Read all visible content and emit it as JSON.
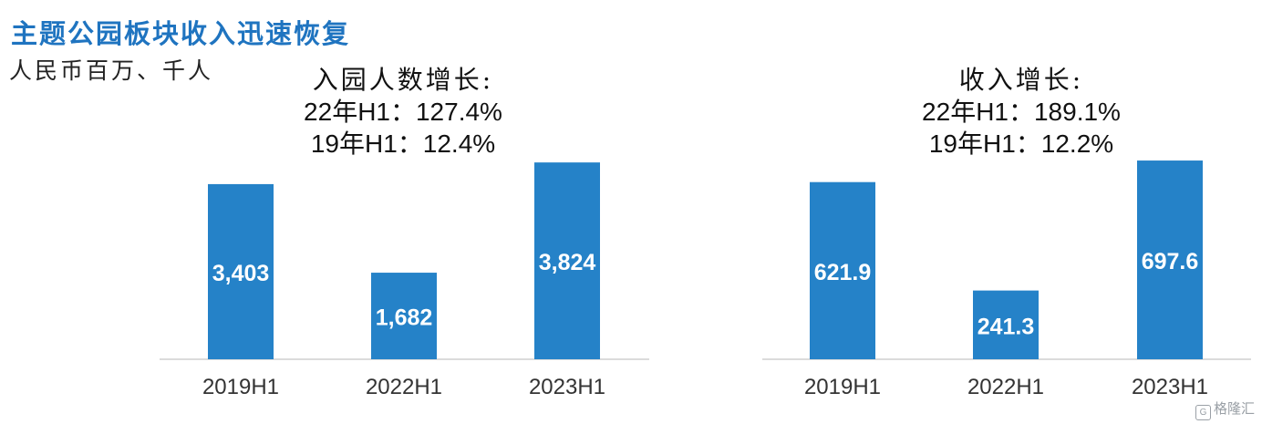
{
  "title": "主题公园板块收入迅速恢复",
  "unit_label": "人民币百万、千人",
  "watermark": {
    "icon": "G",
    "text": "格隆汇"
  },
  "colors": {
    "bar": "#2582c8",
    "title": "#1f74c0",
    "axis": "#cfcfcf",
    "tick_text": "#333333",
    "bar_label": "#ffffff"
  },
  "chart_data": [
    {
      "type": "bar",
      "title": "",
      "annotation": {
        "heading": "入园人数增长:",
        "lines": [
          "22年H1：127.4%",
          "19年H1：12.4%"
        ]
      },
      "categories": [
        "2019H1",
        "2022H1",
        "2023H1"
      ],
      "values": [
        3403,
        1682,
        3824
      ],
      "value_labels": [
        "3,403",
        "1,682",
        "3,824"
      ],
      "xlabel": "",
      "ylabel": "",
      "ylim": [
        0,
        4500
      ],
      "grid": false,
      "legend": "none"
    },
    {
      "type": "bar",
      "title": "",
      "annotation": {
        "heading": "收入增长:",
        "lines": [
          "22年H1：189.1%",
          "19年H1：12.2%"
        ]
      },
      "categories": [
        "2019H1",
        "2022H1",
        "2023H1"
      ],
      "values": [
        621.9,
        241.3,
        697.6
      ],
      "value_labels": [
        "621.9",
        "241.3",
        "697.6"
      ],
      "xlabel": "",
      "ylabel": "",
      "ylim": [
        0,
        813
      ],
      "grid": false,
      "legend": "none"
    }
  ]
}
